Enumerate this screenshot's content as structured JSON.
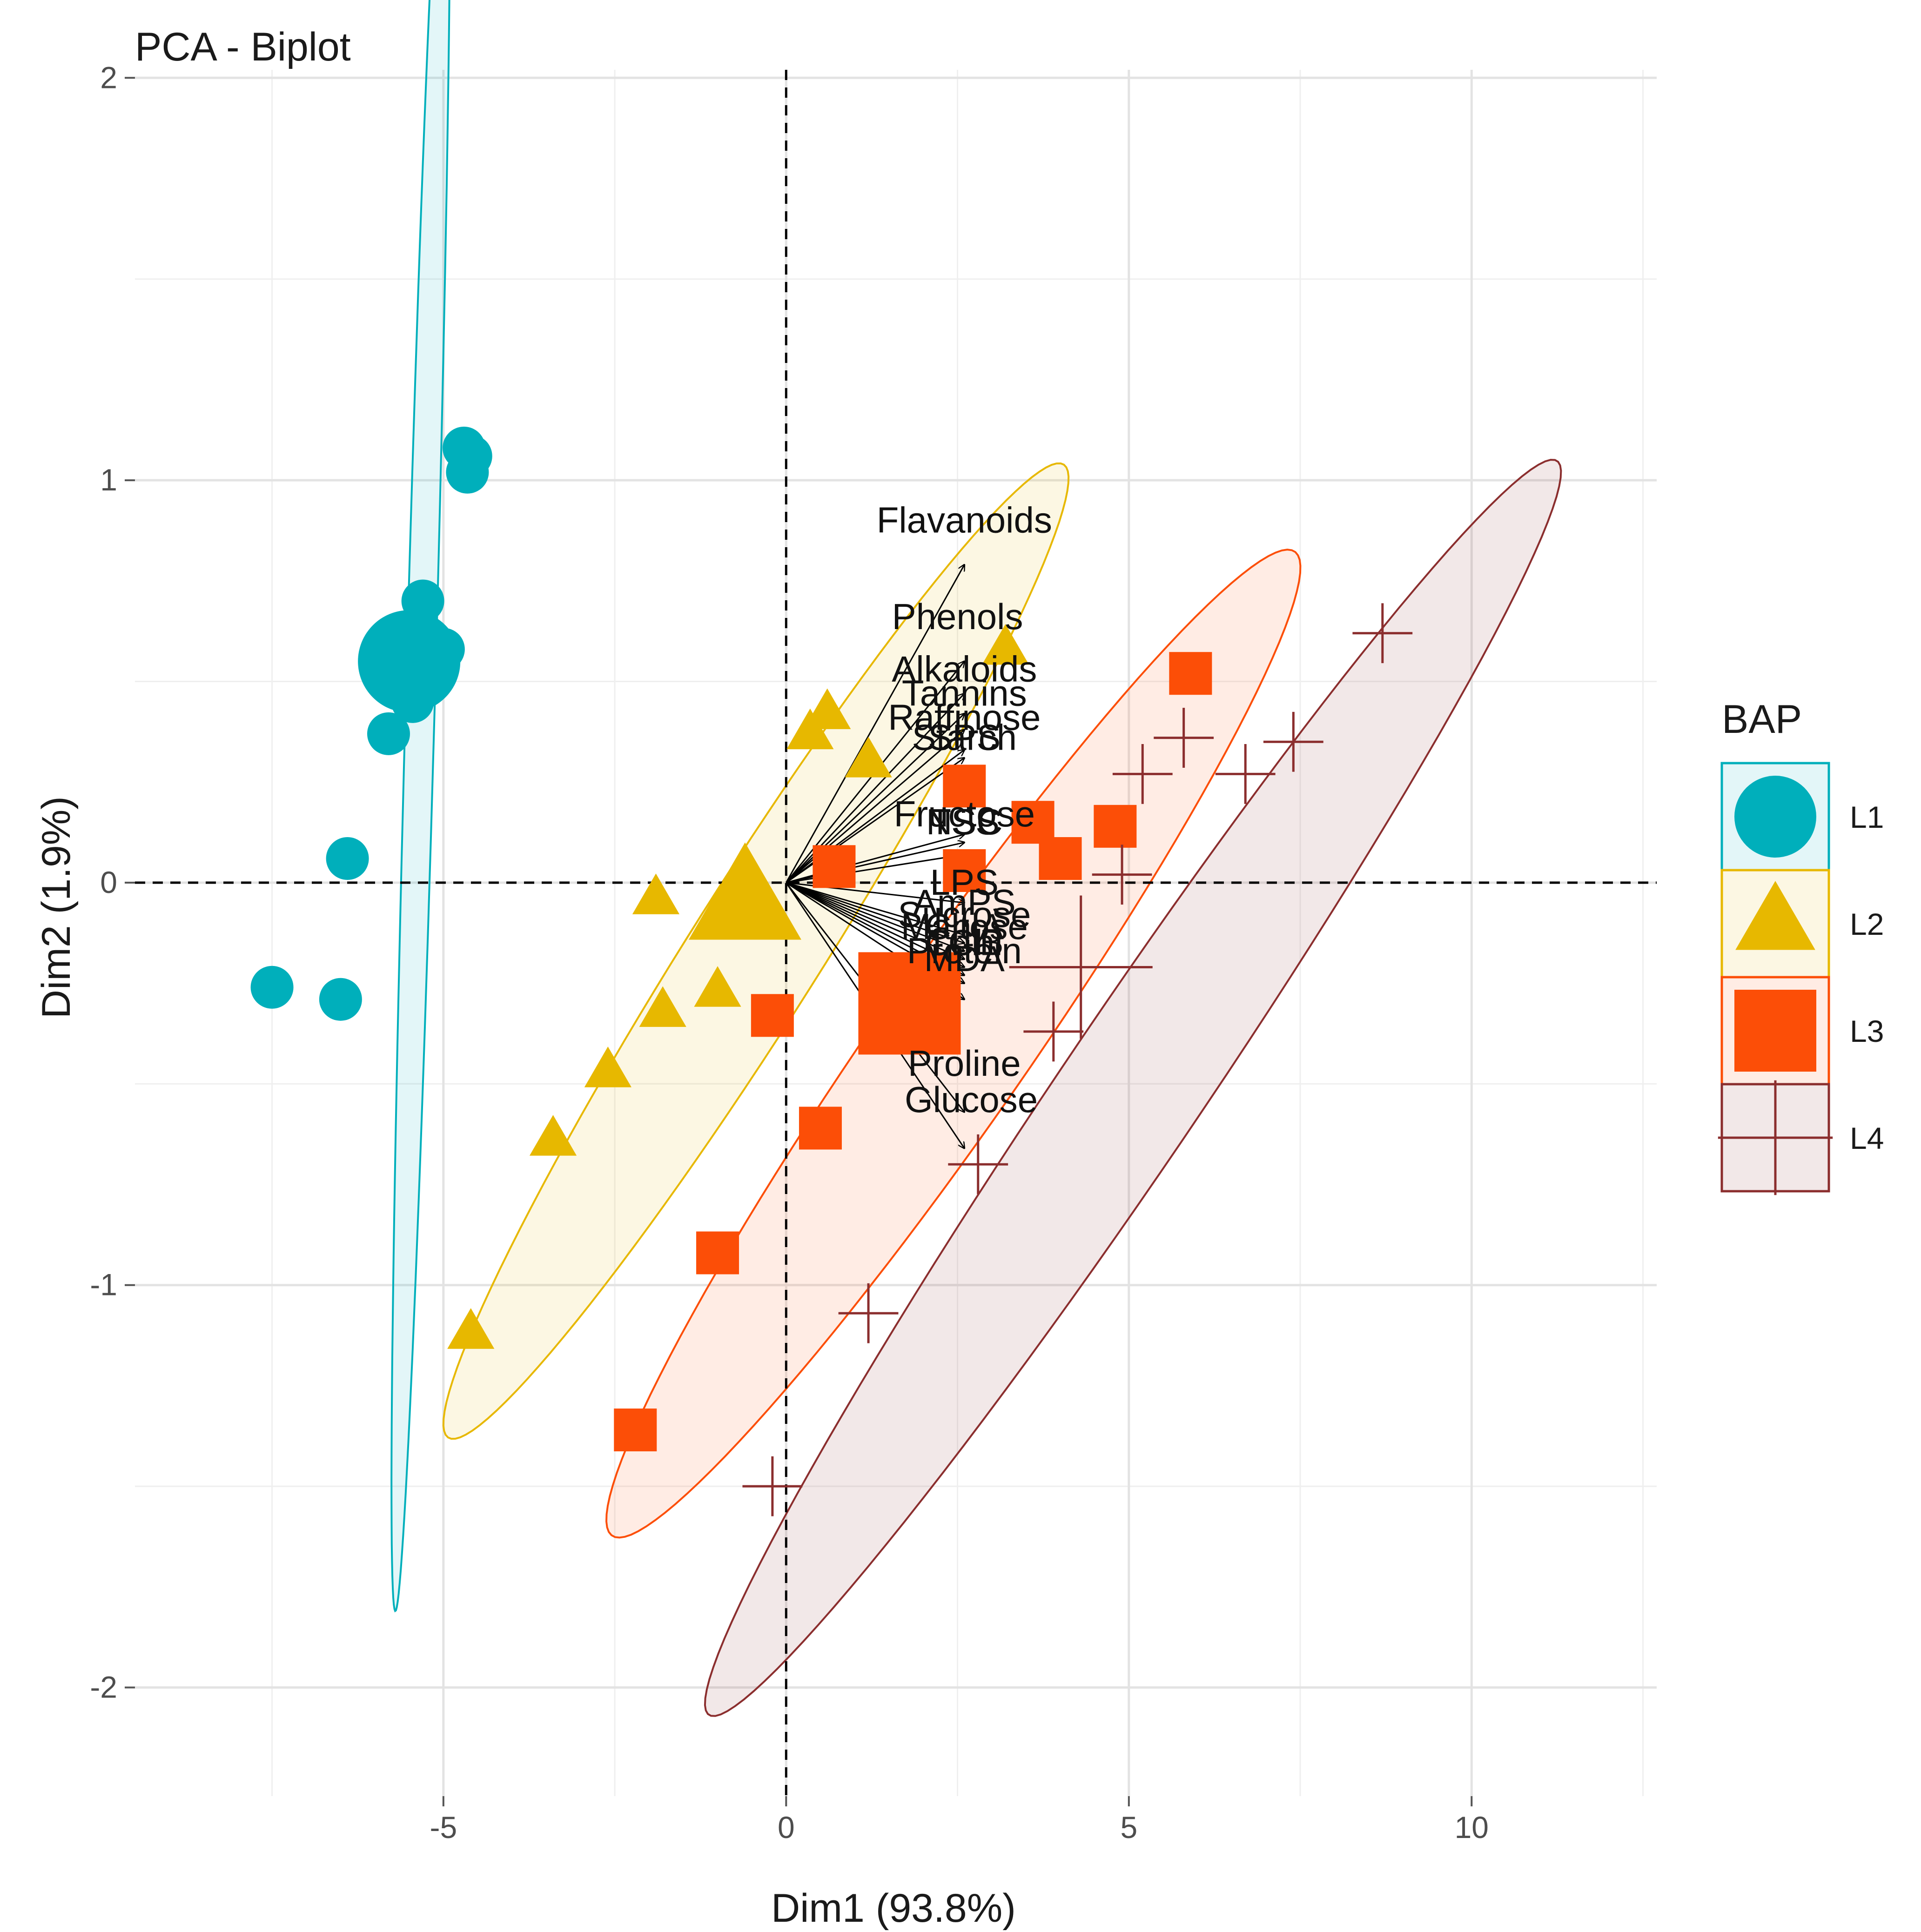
{
  "chart_data": {
    "type": "scatter",
    "title": "PCA - Biplot",
    "xlabel": "Dim1 (93.8%)",
    "ylabel": "Dim2 (1.9%)",
    "xlim": [
      -9.5,
      12.7
    ],
    "ylim": [
      -2.27,
      2.02
    ],
    "xticks": [
      -5,
      0,
      5,
      10
    ],
    "yticks": [
      -2,
      -1,
      0,
      1,
      2
    ],
    "xtick_labels": [
      "-5",
      "0",
      "5",
      "10"
    ],
    "ytick_labels": [
      "-2",
      "-1",
      "0",
      "1",
      "2"
    ],
    "grid": true,
    "reference_lines": {
      "x": 0,
      "y": 0,
      "style": "dashed"
    },
    "legend": {
      "title": "BAP",
      "position": "right"
    },
    "groups": [
      {
        "name": "L1",
        "shape": "circle",
        "color": "#00AFBB",
        "centroid": [
          -5.5,
          0.55
        ],
        "centroid_size": "large",
        "ellipse": {
          "center": [
            -5.33,
            0.5
          ],
          "half_a": 2.34,
          "half_b": 0.21,
          "angle": 80.8
        },
        "points": [
          [
            -4.7,
            1.08
          ],
          [
            -4.6,
            1.06
          ],
          [
            -4.65,
            1.02
          ],
          [
            -5.3,
            0.7
          ],
          [
            -5.4,
            0.62
          ],
          [
            -5.0,
            0.58
          ],
          [
            -5.55,
            0.56
          ],
          [
            -5.6,
            0.5
          ],
          [
            -5.45,
            0.45
          ],
          [
            -5.8,
            0.37
          ],
          [
            -6.4,
            0.06
          ],
          [
            -7.5,
            -0.26
          ],
          [
            -6.5,
            -0.29
          ]
        ]
      },
      {
        "name": "L2",
        "shape": "triangle",
        "color": "#E7B800",
        "centroid": [
          -0.6,
          -0.05
        ],
        "centroid_size": "large",
        "ellipse": {
          "center": [
            -0.44,
            -0.17
          ],
          "half_a": 4.71,
          "half_b": 0.29,
          "angle": 14.5
        },
        "points": [
          [
            3.2,
            0.58
          ],
          [
            0.6,
            0.42
          ],
          [
            0.35,
            0.37
          ],
          [
            1.2,
            0.3
          ],
          [
            -0.6,
            -0.02
          ],
          [
            -1.9,
            -0.04
          ],
          [
            -1.0,
            -0.27
          ],
          [
            -1.8,
            -0.32
          ],
          [
            -2.6,
            -0.47
          ],
          [
            -3.4,
            -0.64
          ],
          [
            -4.6,
            -1.12
          ]
        ]
      },
      {
        "name": "L3",
        "shape": "square",
        "color": "#FC4E07",
        "centroid": [
          1.8,
          -0.3
        ],
        "centroid_size": "large",
        "ellipse": {
          "center": [
            2.44,
            -0.4
          ],
          "half_a": 5.2,
          "half_b": 0.32,
          "angle": 13.2
        },
        "points": [
          [
            5.9,
            0.52
          ],
          [
            2.6,
            0.24
          ],
          [
            3.6,
            0.15
          ],
          [
            4.8,
            0.14
          ],
          [
            4.0,
            0.06
          ],
          [
            0.7,
            0.04
          ],
          [
            2.6,
            0.03
          ],
          [
            -0.2,
            -0.33
          ],
          [
            1.8,
            -0.36
          ],
          [
            0.5,
            -0.61
          ],
          [
            -1.0,
            -0.92
          ],
          [
            -2.2,
            -1.36
          ]
        ]
      },
      {
        "name": "L4",
        "shape": "cross",
        "color": "#8B2E2E",
        "centroid": [
          4.3,
          -0.21
        ],
        "centroid_size": "large",
        "ellipse": {
          "center": [
            5.06,
            -0.51
          ],
          "half_a": 6.43,
          "half_b": 0.3,
          "angle": 13.8
        },
        "points": [
          [
            8.7,
            0.62
          ],
          [
            5.8,
            0.36
          ],
          [
            7.4,
            0.35
          ],
          [
            5.2,
            0.27
          ],
          [
            6.7,
            0.27
          ],
          [
            4.9,
            0.02
          ],
          [
            3.9,
            -0.37
          ],
          [
            2.8,
            -0.7
          ],
          [
            1.2,
            -1.07
          ],
          [
            -0.2,
            -1.5
          ]
        ]
      }
    ],
    "variables": [
      {
        "name": "Flavanoids",
        "x": 2.6,
        "y": 0.79
      },
      {
        "name": "Phenols",
        "x": 2.6,
        "y": 0.55
      },
      {
        "name": "Alkaloids",
        "x": 2.6,
        "y": 0.47
      },
      {
        "name": "Tannins",
        "x": 2.6,
        "y": 0.42
      },
      {
        "name": "Raffinose",
        "x": 2.6,
        "y": 0.38
      },
      {
        "name": "Starch",
        "x": 2.6,
        "y": 0.33
      },
      {
        "name": "SPS",
        "x": 2.6,
        "y": 0.31
      },
      {
        "name": "Fructose",
        "x": 2.6,
        "y": 0.12
      },
      {
        "name": "NSC",
        "x": 2.6,
        "y": 0.1
      },
      {
        "name": "TSS",
        "x": 2.6,
        "y": 0.07
      },
      {
        "name": "LPS",
        "x": 2.6,
        "y": -0.05
      },
      {
        "name": "AmPS",
        "x": 2.6,
        "y": -0.13
      },
      {
        "name": "Sucrose",
        "x": 2.6,
        "y": -0.15
      },
      {
        "name": "Maltose",
        "x": 2.6,
        "y": -0.17
      },
      {
        "name": "ChlA",
        "x": 2.6,
        "y": -0.19
      },
      {
        "name": "ChlB",
        "x": 2.6,
        "y": -0.21
      },
      {
        "name": "TChl",
        "x": 2.6,
        "y": -0.23
      },
      {
        "name": "Protein",
        "x": 2.6,
        "y": -0.25
      },
      {
        "name": "MDA",
        "x": 2.6,
        "y": -0.29
      },
      {
        "name": "Proline",
        "x": 2.6,
        "y": -0.57
      },
      {
        "name": "Glucose",
        "x": 2.6,
        "y": -0.66
      }
    ],
    "shown_labels": [
      "Flavanoids",
      "Phenols",
      "Alkaloids",
      "Tannins",
      "Raffinose",
      "Starch",
      "SPS",
      "Fructose",
      "NSC",
      "TSS",
      "LPS",
      "AmPS",
      "Sucrose",
      "Maltose",
      "ChlA",
      "ChlB",
      "TChl",
      "Protein",
      "MDA",
      "Proline",
      "Glucose"
    ]
  }
}
